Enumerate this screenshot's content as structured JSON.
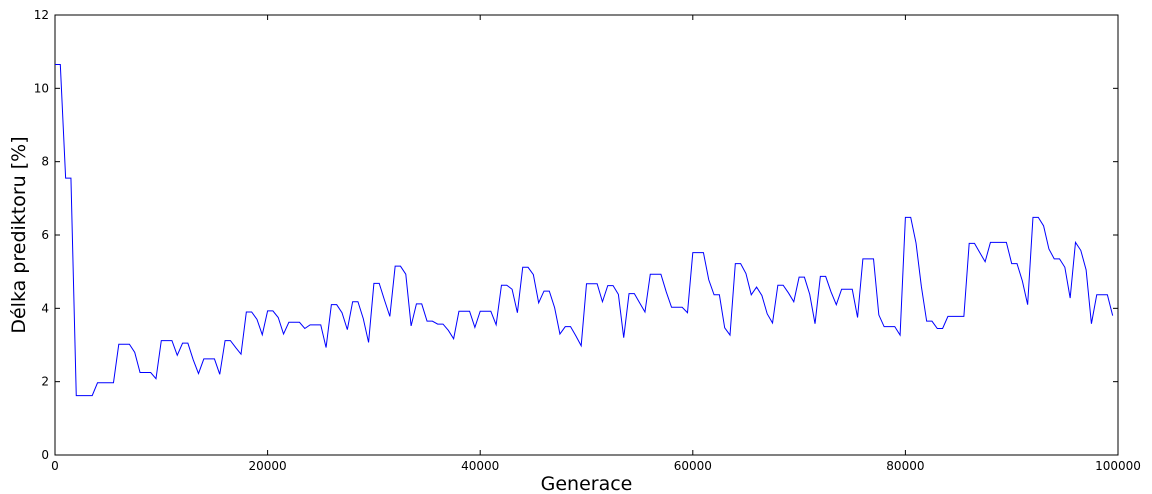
{
  "chart_data": {
    "type": "line",
    "title": "",
    "xlabel": "Generace",
    "ylabel": "Délka prediktoru [%]",
    "xlim": [
      0,
      100000
    ],
    "ylim": [
      0,
      12
    ],
    "xticks": [
      0,
      20000,
      40000,
      60000,
      80000,
      100000
    ],
    "yticks": [
      0,
      2,
      4,
      6,
      8,
      10,
      12
    ],
    "grid": false,
    "legend": "none",
    "line_color": "#0000ff",
    "series": [
      {
        "x": [
          0,
          500,
          1000,
          1500,
          2000,
          2500,
          3000,
          3500,
          4000,
          4500,
          5000,
          5500,
          6000,
          6500,
          7000,
          7500,
          8000,
          8500,
          9000,
          9500,
          10000,
          10500,
          11000,
          11500,
          12000,
          12500,
          13000,
          13500,
          14000,
          14500,
          15000,
          15500,
          16000,
          16500,
          17000,
          17500,
          18000,
          18500,
          19000,
          19500,
          20000,
          20500,
          21000,
          21500,
          22000,
          22500,
          23000,
          23500,
          24000,
          24500,
          25000,
          25500,
          26000,
          26500,
          27000,
          27500,
          28000,
          28500,
          29000,
          29500,
          30000,
          30500,
          31000,
          31500,
          32000,
          32500,
          33000,
          33500,
          34000,
          34500,
          35000,
          35500,
          36000,
          36500,
          37000,
          37500,
          38000,
          38500,
          39000,
          39500,
          40000,
          40500,
          41000,
          41500,
          42000,
          42500,
          43000,
          43500,
          44000,
          44500,
          45000,
          45500,
          46000,
          46500,
          47000,
          47500,
          48000,
          48500,
          49000,
          49500,
          50000,
          50500,
          51000,
          51500,
          52000,
          52500,
          53000,
          53500,
          54000,
          54500,
          55000,
          55500,
          56000,
          56500,
          57000,
          57500,
          58000,
          58500,
          59000,
          59500,
          60000,
          60500,
          61000,
          61500,
          62000,
          62500,
          63000,
          63500,
          64000,
          64500,
          65000,
          65500,
          66000,
          66500,
          67000,
          67500,
          68000,
          68500,
          69000,
          69500,
          70000,
          70500,
          71000,
          71500,
          72000,
          72500,
          73000,
          73500,
          74000,
          74500,
          75000,
          75500,
          76000,
          76500,
          77000,
          77500,
          78000,
          78500,
          79000,
          79500,
          80000,
          80500,
          81000,
          81500,
          82000,
          82500,
          83000,
          83500,
          84000,
          84500,
          85000,
          85500,
          86000,
          86500,
          87000,
          87500,
          88000,
          88500,
          89000,
          89500,
          90000,
          90500,
          91000,
          91500,
          92000,
          92500,
          93000,
          93500,
          94000,
          94500,
          95000,
          95500,
          96000,
          96500,
          97000,
          97500,
          98000,
          98500,
          99000,
          99500
        ],
        "values": [
          10.65,
          10.65,
          7.55,
          7.55,
          1.62,
          1.62,
          1.62,
          1.62,
          1.97,
          1.97,
          1.97,
          1.97,
          3.02,
          3.02,
          3.02,
          2.8,
          2.25,
          2.25,
          2.25,
          2.08,
          3.12,
          3.12,
          3.12,
          2.72,
          3.05,
          3.05,
          2.6,
          2.22,
          2.62,
          2.62,
          2.62,
          2.2,
          3.12,
          3.12,
          2.93,
          2.75,
          3.9,
          3.9,
          3.7,
          3.28,
          3.93,
          3.93,
          3.75,
          3.3,
          3.62,
          3.62,
          3.62,
          3.45,
          3.55,
          3.55,
          3.55,
          2.93,
          4.1,
          4.1,
          3.88,
          3.42,
          4.18,
          4.18,
          3.72,
          3.07,
          4.68,
          4.68,
          4.22,
          3.78,
          5.15,
          5.15,
          4.93,
          3.52,
          4.12,
          4.12,
          3.65,
          3.65,
          3.57,
          3.57,
          3.4,
          3.17,
          3.92,
          3.92,
          3.92,
          3.48,
          3.92,
          3.92,
          3.92,
          3.55,
          4.63,
          4.63,
          4.52,
          3.88,
          5.12,
          5.12,
          4.92,
          4.15,
          4.47,
          4.47,
          4.02,
          3.3,
          3.5,
          3.5,
          3.25,
          2.98,
          4.67,
          4.67,
          4.67,
          4.18,
          4.62,
          4.62,
          4.38,
          3.2,
          4.4,
          4.4,
          4.15,
          3.9,
          4.93,
          4.93,
          4.93,
          4.45,
          4.03,
          4.03,
          4.03,
          3.88,
          5.52,
          5.52,
          5.52,
          4.78,
          4.37,
          4.37,
          3.47,
          3.27,
          5.22,
          5.22,
          4.95,
          4.37,
          4.58,
          4.35,
          3.85,
          3.6,
          4.63,
          4.63,
          4.42,
          4.18,
          4.85,
          4.85,
          4.38,
          3.58,
          4.87,
          4.87,
          4.45,
          4.1,
          4.52,
          4.52,
          4.52,
          3.75,
          5.35,
          5.35,
          5.35,
          3.82,
          3.5,
          3.5,
          3.5,
          3.27,
          6.48,
          6.48,
          5.78,
          4.6,
          3.65,
          3.65,
          3.45,
          3.45,
          3.78,
          3.78,
          3.78,
          3.78,
          5.77,
          5.77,
          5.52,
          5.27,
          5.8,
          5.8,
          5.8,
          5.8,
          5.22,
          5.22,
          4.75,
          4.1,
          6.48,
          6.48,
          6.25,
          5.62,
          5.35,
          5.35,
          5.12,
          4.28,
          5.8,
          5.58,
          5.05,
          3.58,
          4.37,
          4.37,
          4.37,
          3.8
        ]
      }
    ]
  }
}
